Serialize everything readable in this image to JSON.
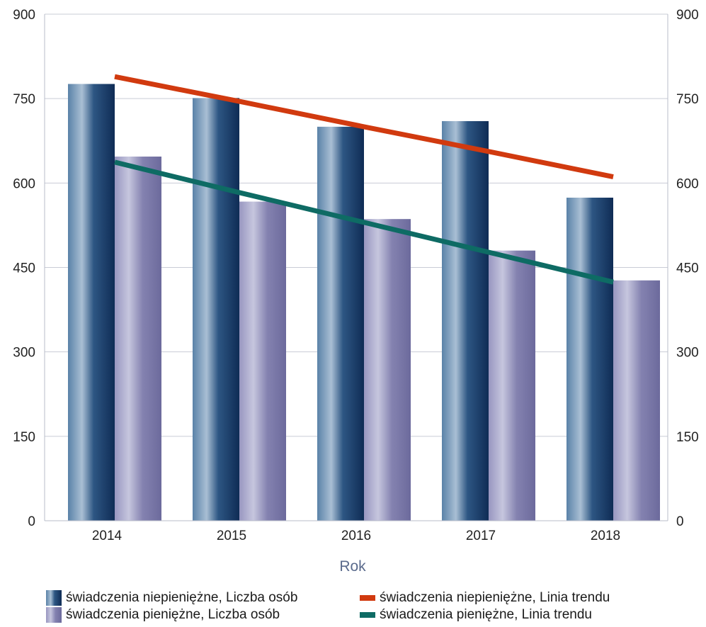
{
  "chart_data": {
    "type": "bar",
    "title": "",
    "xlabel": "Rok",
    "ylabel": "",
    "ylim": [
      0,
      900
    ],
    "yticks": [
      0,
      150,
      300,
      450,
      600,
      750,
      900
    ],
    "y2ticks": [
      0,
      150,
      300,
      450,
      600,
      750,
      900
    ],
    "grid": true,
    "legend_position": "bottom",
    "categories": [
      "2014",
      "2015",
      "2016",
      "2017",
      "2018"
    ],
    "series": [
      {
        "name": "świadczenia niepieniężne, Liczba osób",
        "kind": "bar",
        "color": "#1d3c6a",
        "values": [
          776,
          751,
          700,
          710,
          574
        ]
      },
      {
        "name": "świadczenia pieniężne, Liczba osób",
        "kind": "bar",
        "color": "#8a89b4",
        "values": [
          647,
          567,
          536,
          480,
          427
        ]
      },
      {
        "name": "świadczenia niepieniężne, Linia trendu",
        "kind": "line",
        "color": "#d13a0f",
        "values": [
          789,
          745,
          700,
          656,
          611
        ]
      },
      {
        "name": "świadczenia pieniężne, Linia trendu",
        "kind": "line",
        "color": "#0e6b64",
        "values": [
          637,
          583,
          530,
          477,
          424
        ]
      }
    ]
  }
}
